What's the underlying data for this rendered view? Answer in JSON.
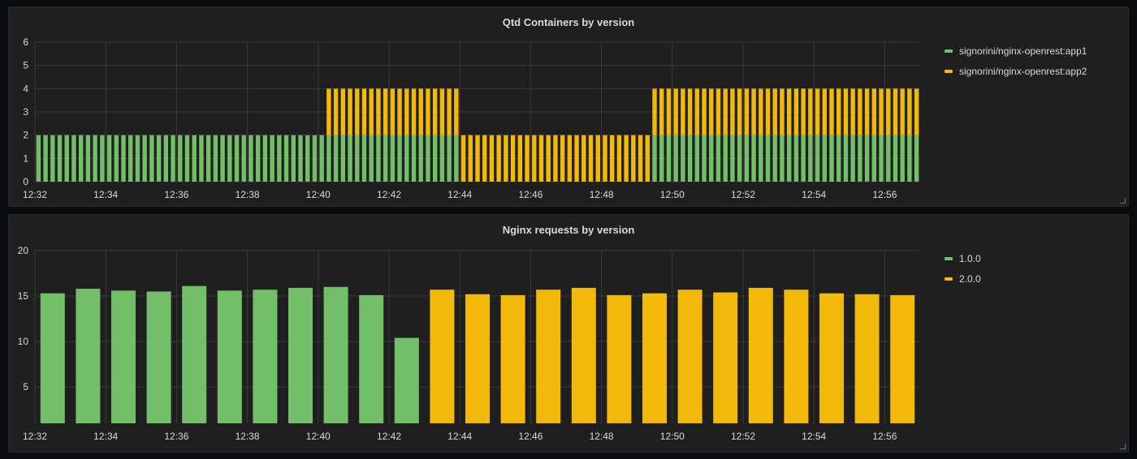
{
  "colors": {
    "green": "#73bf69",
    "yellow": "#f2b90b",
    "grid": "#3a3a3a",
    "text": "#d8d9da"
  },
  "chart_data": [
    {
      "type": "bar",
      "title": "Qtd Containers by version",
      "stacked": true,
      "ylim": [
        0,
        6
      ],
      "yticks": [
        0,
        1,
        2,
        3,
        4,
        5,
        6
      ],
      "xlim": [
        "12:32",
        "12:57"
      ],
      "xticks": [
        "12:32",
        "12:34",
        "12:36",
        "12:38",
        "12:40",
        "12:42",
        "12:44",
        "12:46",
        "12:48",
        "12:50",
        "12:52",
        "12:54",
        "12:56"
      ],
      "grid": true,
      "legend_position": "right",
      "interval_seconds": 12,
      "series": [
        {
          "name": "signorini/nginx-openrest:app1",
          "color": "green",
          "segments": [
            {
              "from": "12:32",
              "to": "12:44",
              "value": 2
            },
            {
              "from": "12:44",
              "to": "12:49.5",
              "value": 0
            },
            {
              "from": "12:49.5",
              "to": "12:57",
              "value": 2
            }
          ]
        },
        {
          "name": "signorini/nginx-openrest:app2",
          "color": "yellow",
          "segments": [
            {
              "from": "12:32",
              "to": "12:40.3",
              "value": 0
            },
            {
              "from": "12:40.3",
              "to": "12:44",
              "value": 2
            },
            {
              "from": "12:44",
              "to": "12:49.5",
              "value": 2
            },
            {
              "from": "12:49.5",
              "to": "12:57",
              "value": 2
            }
          ]
        }
      ]
    },
    {
      "type": "bar",
      "title": "Nginx requests by version",
      "ylim": [
        1,
        20
      ],
      "yticks": [
        5,
        10,
        15,
        20
      ],
      "xlim": [
        "12:32",
        "12:57"
      ],
      "xticks": [
        "12:32",
        "12:34",
        "12:36",
        "12:38",
        "12:40",
        "12:42",
        "12:44",
        "12:46",
        "12:48",
        "12:50",
        "12:52",
        "12:54",
        "12:56"
      ],
      "grid": true,
      "legend_position": "right",
      "series": [
        {
          "name": "1.0.0",
          "color": "green",
          "x": [
            "12:32",
            "12:33",
            "12:34",
            "12:35",
            "12:36",
            "12:37",
            "12:38",
            "12:39",
            "12:40",
            "12:41",
            "12:42"
          ],
          "values": [
            15.3,
            15.8,
            15.6,
            15.5,
            16.1,
            15.6,
            15.7,
            15.9,
            16.0,
            15.1,
            10.4
          ]
        },
        {
          "name": "2.0.0",
          "color": "yellow",
          "x": [
            "12:43",
            "12:44",
            "12:45",
            "12:46",
            "12:47",
            "12:48",
            "12:49",
            "12:50",
            "12:51",
            "12:52",
            "12:53",
            "12:54",
            "12:55",
            "12:56"
          ],
          "values": [
            15.7,
            15.2,
            15.1,
            15.7,
            15.9,
            15.1,
            15.3,
            15.7,
            15.4,
            15.9,
            15.7,
            15.3,
            15.2,
            15.1
          ]
        }
      ]
    }
  ]
}
